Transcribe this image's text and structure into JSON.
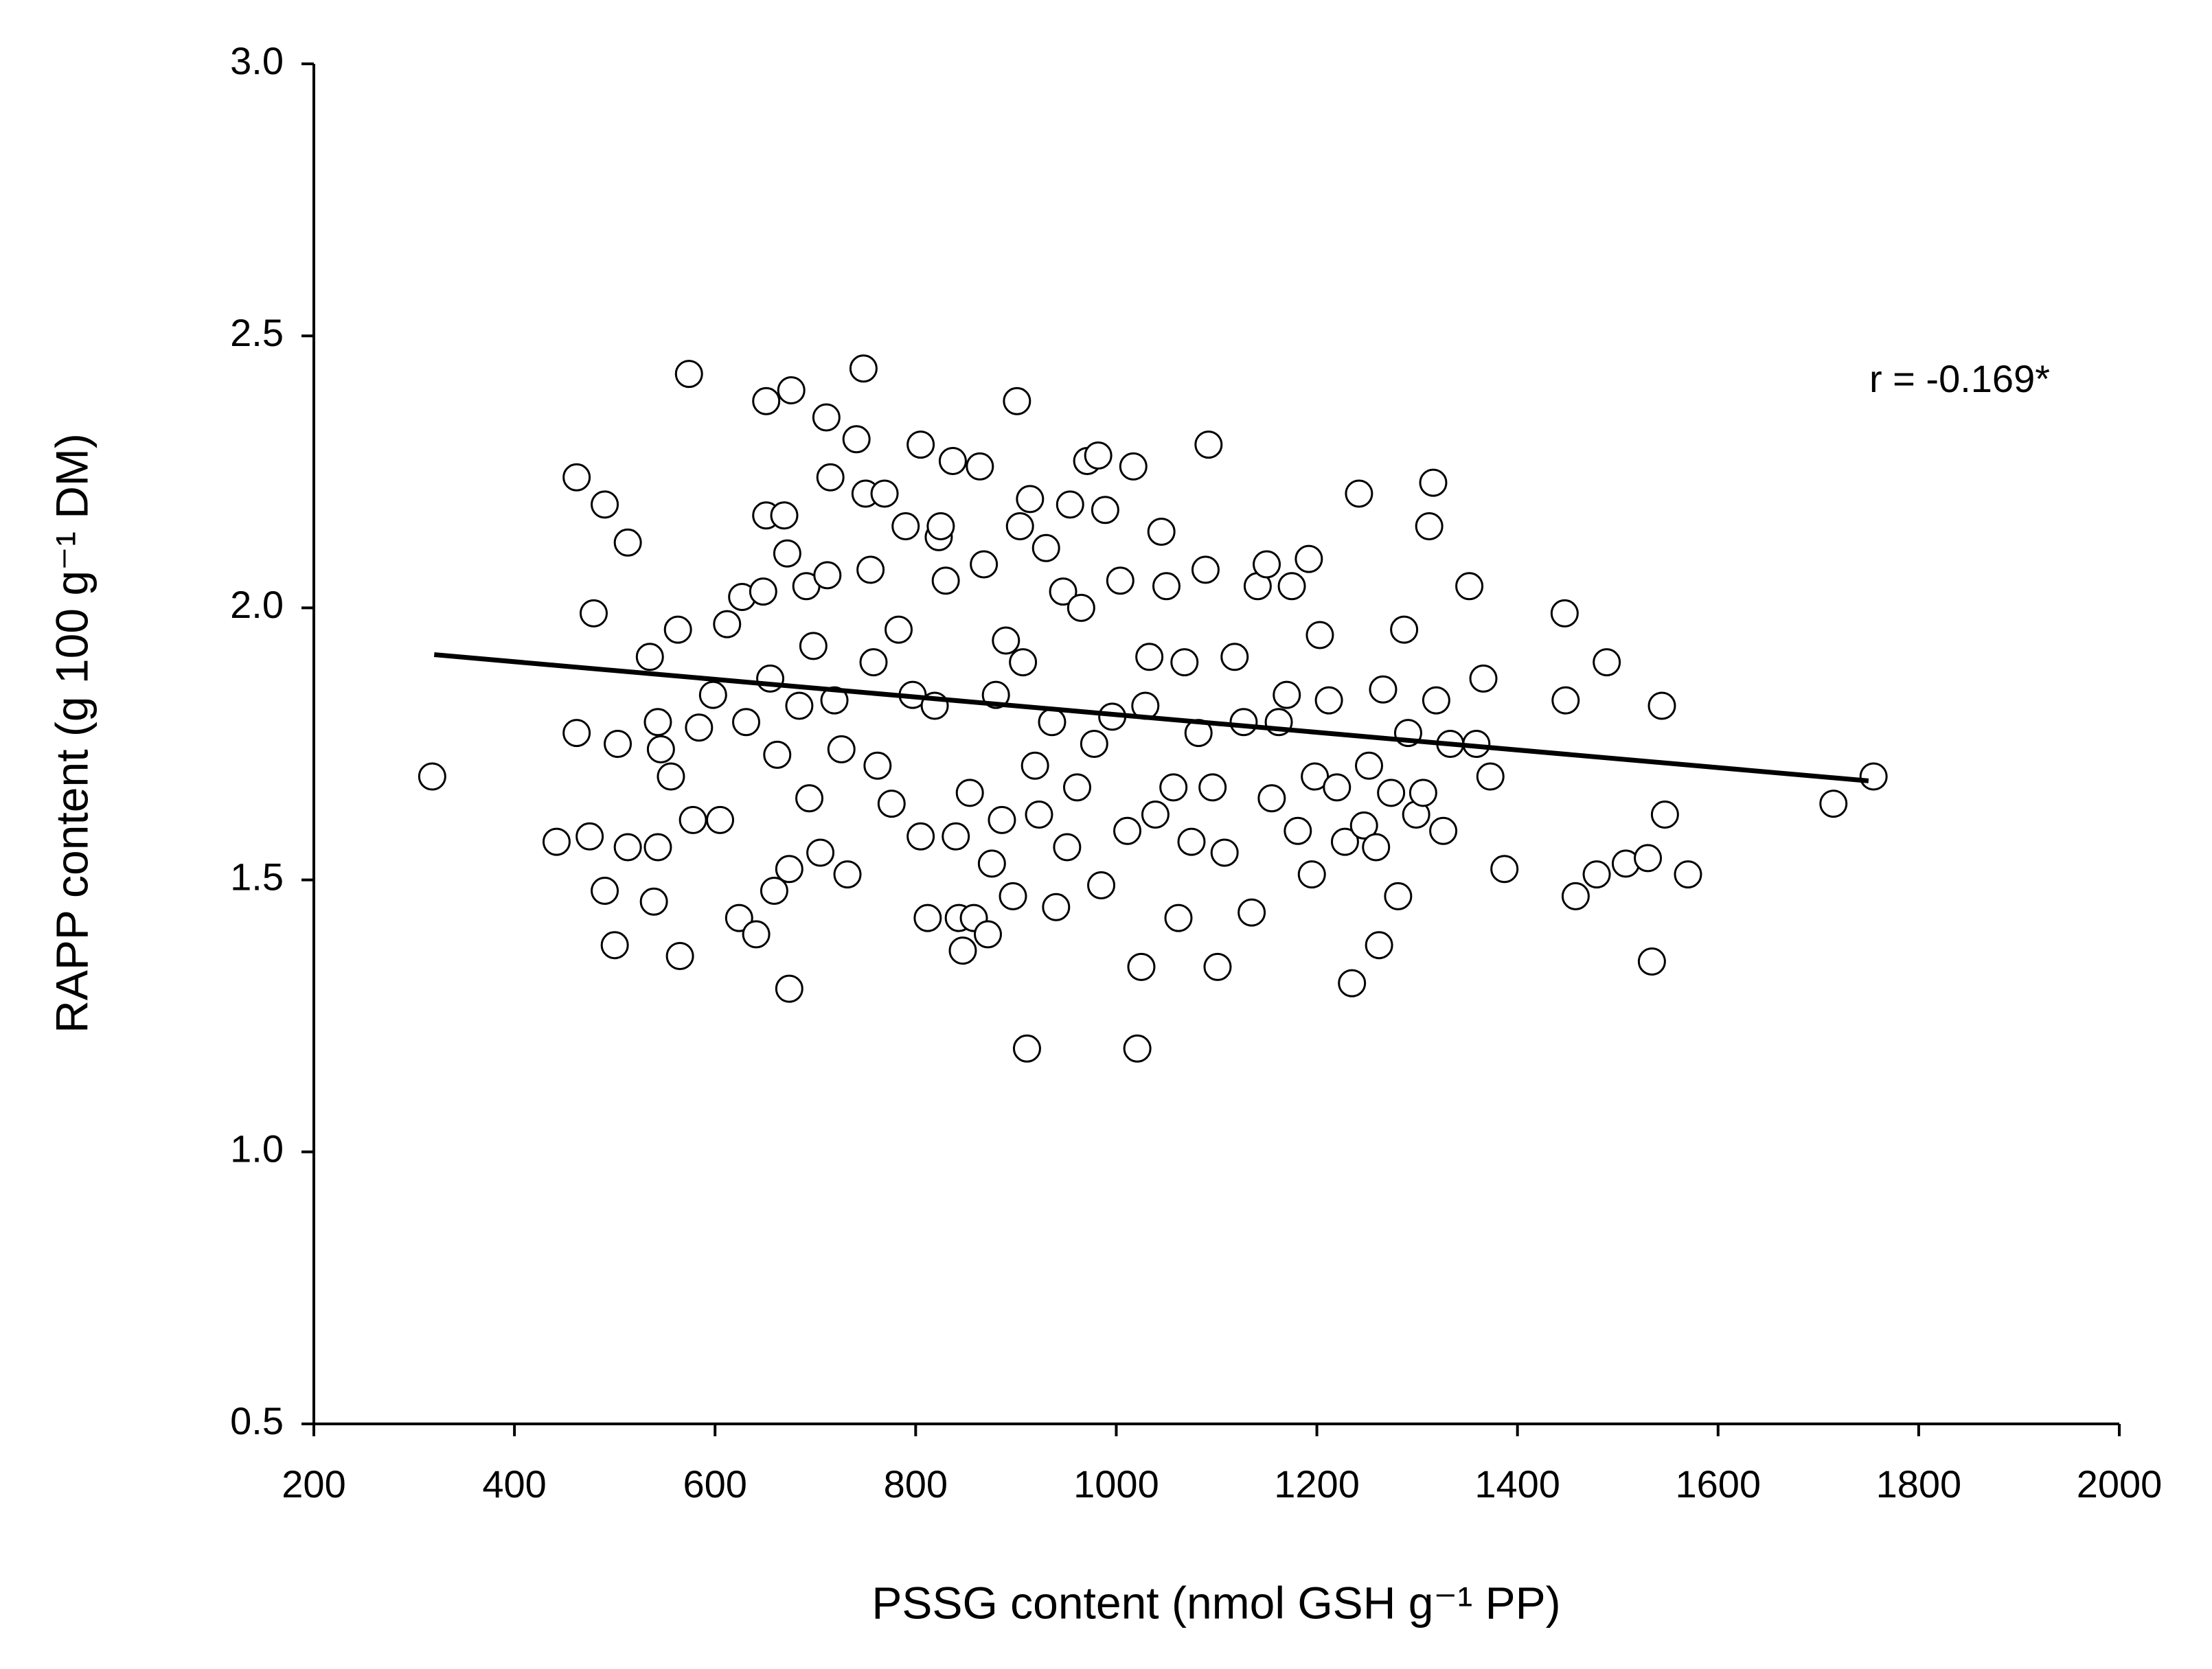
{
  "chart_data": {
    "type": "scatter",
    "xlabel": "PSSG content (nmol GSH g⁻¹ PP)",
    "ylabel": "RAPP content (g 100 g⁻¹ DM)",
    "annotation": "r = -0.169*",
    "xlim": [
      200,
      2000
    ],
    "xticks": [
      200,
      400,
      600,
      800,
      1000,
      1200,
      1400,
      1600,
      1800,
      2000
    ],
    "ylim": [
      0.5,
      3.0
    ],
    "yticks": [
      0.5,
      {
        "value": 1.0,
        "label": "1.0"
      },
      1.5,
      {
        "value": 2.0,
        "label": "2.0"
      },
      2.5,
      {
        "value": 3.0,
        "label": "3.0"
      }
    ],
    "marker_color": "#ffffff",
    "marker_edge": "#000000",
    "trend_line": {
      "x": [
        320,
        1750
      ],
      "y": [
        1.914,
        1.682
      ],
      "color": "#000000"
    },
    "x": [
      318,
      442,
      462,
      462,
      475,
      479,
      490,
      490,
      500,
      503,
      513,
      513,
      535,
      539,
      543,
      543,
      546,
      556,
      563,
      565,
      574,
      578,
      584,
      598,
      605,
      612,
      624,
      627,
      631,
      641,
      648,
      651,
      651,
      655,
      659,
      662,
      669,
      672,
      674,
      676,
      674,
      684,
      691,
      694,
      698,
      705,
      711,
      712,
      715,
      719,
      726,
      732,
      741,
      748,
      750,
      755,
      758,
      762,
      769,
      776,
      783,
      790,
      797,
      805,
      805,
      812,
      819,
      823,
      825,
      830,
      837,
      840,
      843,
      847,
      854,
      858,
      864,
      868,
      872,
      876,
      880,
      886,
      890,
      897,
      901,
      904,
      907,
      911,
      914,
      919,
      923,
      930,
      936,
      940,
      947,
      951,
      954,
      961,
      965,
      971,
      978,
      982,
      985,
      989,
      996,
      1004,
      1011,
      1017,
      1021,
      1025,
      1029,
      1033,
      1039,
      1045,
      1050,
      1057,
      1062,
      1068,
      1075,
      1082,
      1089,
      1092,
      1096,
      1101,
      1108,
      1118,
      1127,
      1135,
      1141,
      1150,
      1155,
      1162,
      1170,
      1175,
      1181,
      1192,
      1195,
      1198,
      1203,
      1212,
      1220,
      1228,
      1235,
      1242,
      1247,
      1252,
      1259,
      1262,
      1266,
      1274,
      1281,
      1287,
      1291,
      1299,
      1306,
      1312,
      1316,
      1319,
      1326,
      1333,
      1352,
      1359,
      1366,
      1373,
      1387,
      1447,
      1448,
      1458,
      1479,
      1489,
      1508,
      1530,
      1534,
      1544,
      1547,
      1570,
      1715,
      1755
    ],
    "y": [
      1.69,
      1.57,
      2.24,
      1.77,
      1.58,
      1.99,
      2.19,
      1.48,
      1.38,
      1.75,
      2.12,
      1.56,
      1.91,
      1.46,
      1.56,
      1.79,
      1.74,
      1.69,
      1.96,
      1.36,
      2.43,
      1.61,
      1.78,
      1.84,
      1.61,
      1.97,
      1.43,
      2.02,
      1.79,
      1.4,
      2.03,
      2.38,
      2.17,
      1.87,
      1.48,
      1.73,
      2.17,
      2.1,
      1.3,
      2.4,
      1.52,
      1.82,
      2.04,
      1.65,
      1.93,
      1.55,
      2.35,
      2.06,
      2.24,
      1.83,
      1.74,
      1.51,
      2.31,
      2.44,
      2.21,
      2.07,
      1.9,
      1.71,
      2.21,
      1.64,
      1.96,
      2.15,
      1.84,
      2.3,
      1.58,
      1.43,
      1.82,
      2.13,
      2.15,
      2.05,
      2.27,
      1.58,
      1.43,
      1.37,
      1.66,
      1.43,
      2.26,
      2.08,
      1.4,
      1.53,
      1.84,
      1.61,
      1.94,
      1.47,
      2.38,
      2.15,
      1.9,
      1.19,
      2.2,
      1.71,
      1.62,
      2.11,
      1.79,
      1.45,
      2.03,
      1.56,
      2.19,
      1.67,
      2.0,
      2.27,
      1.75,
      2.28,
      1.49,
      2.18,
      1.8,
      2.05,
      1.59,
      2.26,
      1.19,
      1.34,
      1.82,
      1.91,
      1.62,
      2.14,
      2.04,
      1.67,
      1.43,
      1.9,
      1.57,
      1.77,
      2.07,
      2.3,
      1.67,
      1.34,
      1.55,
      1.91,
      1.79,
      1.44,
      2.04,
      2.08,
      1.65,
      1.79,
      1.84,
      2.04,
      1.59,
      2.09,
      1.51,
      1.69,
      1.95,
      1.83,
      1.67,
      1.57,
      1.31,
      2.21,
      1.6,
      1.71,
      1.56,
      1.38,
      1.85,
      1.66,
      1.47,
      1.96,
      1.77,
      1.62,
      1.66,
      2.15,
      2.23,
      1.83,
      1.59,
      1.75,
      2.04,
      1.75,
      1.87,
      1.69,
      1.52,
      1.99,
      1.83,
      1.47,
      1.51,
      1.9,
      1.53,
      1.54,
      1.35,
      1.82,
      1.62,
      1.51,
      1.64,
      1.69
    ]
  }
}
